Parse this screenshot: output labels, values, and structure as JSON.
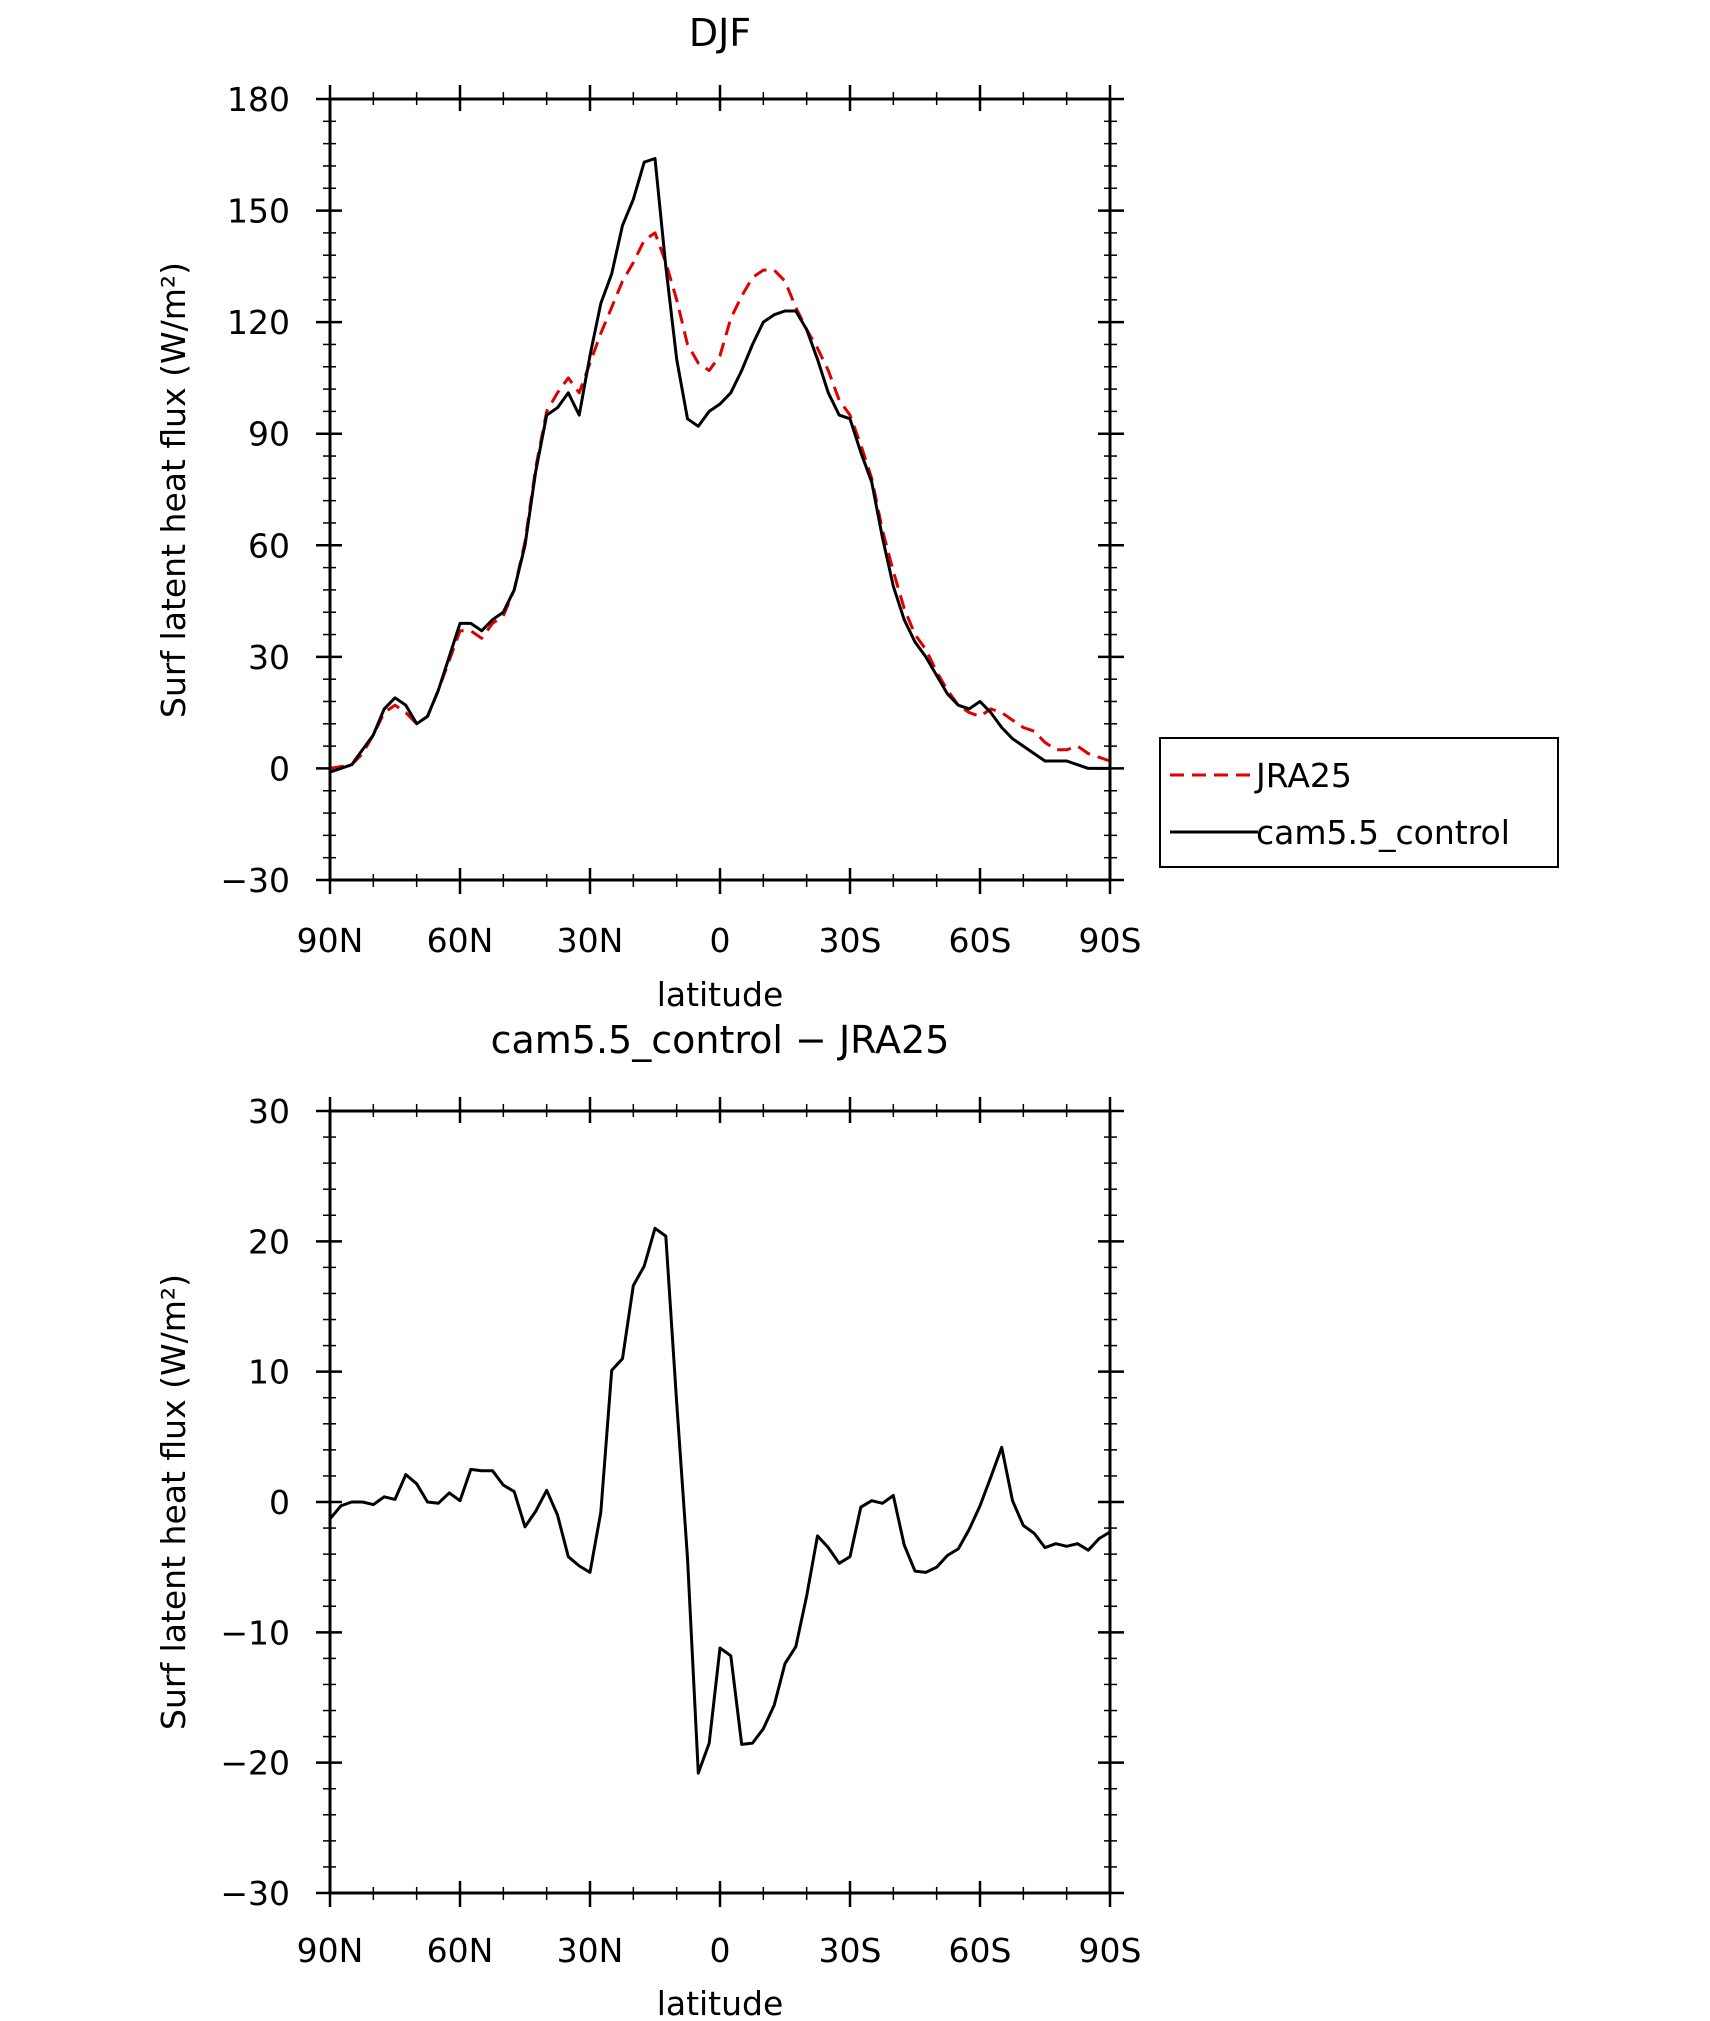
{
  "chart_data": [
    {
      "type": "line",
      "title": "DJF",
      "xlabel": "latitude",
      "ylabel": "Surf latent heat flux (W/m²)",
      "xlim": [
        90,
        -90
      ],
      "ylim": [
        -30,
        180
      ],
      "x_ticks": [
        {
          "value": 90,
          "label": "90N"
        },
        {
          "value": 60,
          "label": "60N"
        },
        {
          "value": 30,
          "label": "30N"
        },
        {
          "value": 0,
          "label": "0"
        },
        {
          "value": -30,
          "label": "30S"
        },
        {
          "value": -60,
          "label": "60S"
        },
        {
          "value": -90,
          "label": "90S"
        }
      ],
      "y_ticks": [
        {
          "value": 180,
          "label": "180"
        },
        {
          "value": 150,
          "label": "150"
        },
        {
          "value": 120,
          "label": "120"
        },
        {
          "value": 90,
          "label": "90"
        },
        {
          "value": 60,
          "label": "60"
        },
        {
          "value": 30,
          "label": "30"
        },
        {
          "value": 0,
          "label": "0"
        },
        {
          "value": -30,
          "label": "−30"
        }
      ],
      "legend": {
        "placement": "right",
        "entries": [
          "JRA25",
          "cam5.5_control"
        ]
      },
      "series": [
        {
          "name": "JRA25",
          "color": "#e00000",
          "dash": "dashed",
          "x": [
            90,
            87.5,
            85,
            82.5,
            80,
            77.5,
            75,
            72.5,
            70,
            67.5,
            65,
            62.5,
            60,
            57.5,
            55,
            52.5,
            50,
            47.5,
            45,
            42.5,
            40,
            37.5,
            35,
            32.5,
            30,
            27.5,
            25,
            22.5,
            20,
            17.5,
            15,
            12.5,
            10,
            7.5,
            5,
            2.5,
            0,
            -2.5,
            -5,
            -7.5,
            -10,
            -12.5,
            -15,
            -17.5,
            -20,
            -22.5,
            -25,
            -27.5,
            -30,
            -32.5,
            -35,
            -37.5,
            -40,
            -42.5,
            -45,
            -47.5,
            -50,
            -52.5,
            -55,
            -57.5,
            -60,
            -62.5,
            -65,
            -67.5,
            -70,
            -72.5,
            -75,
            -77.5,
            -80,
            -82.5,
            -85,
            -87.5,
            -90
          ],
          "values": [
            0,
            0.5,
            1,
            4,
            9,
            15,
            17,
            15,
            12,
            14,
            21,
            29,
            37,
            37,
            35,
            39,
            41,
            48,
            61,
            81,
            96,
            101,
            105,
            101,
            109,
            117,
            124,
            131,
            136,
            142,
            144,
            136,
            126,
            114,
            109,
            107,
            111,
            121,
            127,
            132,
            134,
            134,
            131,
            124,
            118,
            113,
            107,
            99,
            95,
            87,
            78,
            64,
            53,
            43,
            36,
            32,
            26,
            21,
            17,
            15,
            14,
            16,
            15,
            13,
            11,
            10,
            7,
            5,
            5,
            6,
            4,
            3,
            2
          ]
        },
        {
          "name": "cam5.5_control",
          "color": "#000000",
          "dash": "solid",
          "x": [
            90,
            87.5,
            85,
            82.5,
            80,
            77.5,
            75,
            72.5,
            70,
            67.5,
            65,
            62.5,
            60,
            57.5,
            55,
            52.5,
            50,
            47.5,
            45,
            42.5,
            40,
            37.5,
            35,
            32.5,
            30,
            27.5,
            25,
            22.5,
            20,
            17.5,
            15,
            12.5,
            10,
            7.5,
            5,
            2.5,
            0,
            -2.5,
            -5,
            -7.5,
            -10,
            -12.5,
            -15,
            -17.5,
            -20,
            -22.5,
            -25,
            -27.5,
            -30,
            -32.5,
            -35,
            -37.5,
            -40,
            -42.5,
            -45,
            -47.5,
            -50,
            -52.5,
            -55,
            -57.5,
            -60,
            -62.5,
            -65,
            -67.5,
            -70,
            -72.5,
            -75,
            -77.5,
            -80,
            -82.5,
            -85,
            -87.5,
            -90
          ],
          "values": [
            -1,
            0,
            1,
            5,
            9,
            16,
            19,
            17,
            12,
            14,
            21,
            30,
            39,
            39,
            37,
            40,
            42,
            48,
            60,
            80,
            95,
            97,
            101,
            95,
            111,
            125,
            133,
            146,
            153,
            163,
            164,
            135,
            110,
            94,
            92,
            96,
            98,
            101,
            107,
            114,
            120,
            122,
            123,
            123,
            118,
            110,
            101,
            95,
            94,
            85,
            77,
            62,
            49,
            40,
            34,
            30,
            25,
            20,
            17,
            16,
            18,
            15,
            11,
            8,
            6,
            4,
            2,
            2,
            2,
            1,
            0,
            0,
            0
          ]
        }
      ]
    },
    {
      "type": "line",
      "title": "cam5.5_control − JRA25",
      "xlabel": "latitude",
      "ylabel": "Surf latent heat flux (W/m²)",
      "xlim": [
        90,
        -90
      ],
      "ylim": [
        -30,
        30
      ],
      "x_ticks": [
        {
          "value": 90,
          "label": "90N"
        },
        {
          "value": 60,
          "label": "60N"
        },
        {
          "value": 30,
          "label": "30N"
        },
        {
          "value": 0,
          "label": "0"
        },
        {
          "value": -30,
          "label": "30S"
        },
        {
          "value": -60,
          "label": "60S"
        },
        {
          "value": -90,
          "label": "90S"
        }
      ],
      "y_ticks": [
        {
          "value": 30,
          "label": "30"
        },
        {
          "value": 20,
          "label": "20"
        },
        {
          "value": 10,
          "label": "10"
        },
        {
          "value": 0,
          "label": "0"
        },
        {
          "value": -10,
          "label": "−10"
        },
        {
          "value": -20,
          "label": "−20"
        },
        {
          "value": -30,
          "label": "−30"
        }
      ],
      "series": [
        {
          "color": "#000000",
          "dash": "solid",
          "x": [
            90,
            87.5,
            85,
            82.5,
            80,
            77.5,
            75,
            72.5,
            70,
            67.5,
            65,
            62.5,
            60,
            57.5,
            55,
            52.5,
            50,
            47.5,
            45,
            42.5,
            40,
            37.5,
            35,
            32.5,
            30,
            27.5,
            25,
            22.5,
            20,
            17.5,
            15,
            12.5,
            10,
            7.5,
            5,
            2.5,
            0,
            -2.5,
            -5,
            -7.5,
            -10,
            -12.5,
            -15,
            -17.5,
            -20,
            -22.5,
            -25,
            -27.5,
            -30,
            -32.5,
            -35,
            -37.5,
            -40,
            -42.5,
            -45,
            -47.5,
            -50,
            -52.5,
            -55,
            -57.5,
            -60,
            -62.5,
            -65,
            -67.5,
            -70,
            -72.5,
            -75,
            -77.5,
            -80,
            -82.5,
            -85,
            -87.5,
            -90
          ],
          "values": [
            -1.3,
            -0.3,
            0,
            0,
            -0.2,
            0.4,
            0.2,
            2.1,
            1.4,
            0,
            -0.1,
            0.7,
            0.1,
            2.5,
            2.4,
            2.4,
            1.3,
            0.8,
            -1.9,
            -0.7,
            0.9,
            -1,
            -4.2,
            -4.9,
            -5.4,
            -0.8,
            10.1,
            11,
            16.6,
            18.1,
            21,
            20.4,
            7.6,
            -4.3,
            -20.8,
            -18.5,
            -11.2,
            -11.8,
            -18.6,
            -18.5,
            -17.4,
            -15.6,
            -12.4,
            -11.1,
            -7.2,
            -2.6,
            -3.5,
            -4.7,
            -4.2,
            -0.4,
            0.1,
            -0.1,
            0.5,
            -3.3,
            -5.3,
            -5.4,
            -5,
            -4.1,
            -3.6,
            -2.1,
            -0.3,
            1.9,
            4.2,
            0.1,
            -1.8,
            -2.4,
            -3.5,
            -3.2,
            -3.4,
            -3.2,
            -3.7,
            -2.8,
            -2.3
          ]
        }
      ]
    }
  ]
}
